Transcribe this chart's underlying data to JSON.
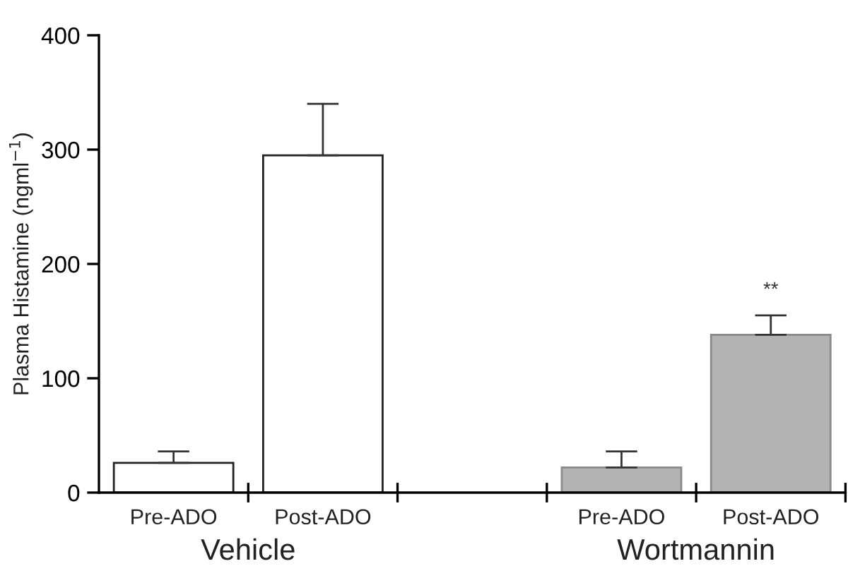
{
  "chart_data": {
    "type": "bar",
    "ylabel": "Plasma Histamine (ngml$^{−1}$)",
    "categories": [
      "Pre-ADO",
      "Post-ADO",
      null,
      "Pre-ADO",
      "Post-ADO"
    ],
    "values": [
      26,
      295,
      null,
      22,
      138
    ],
    "errors": [
      10,
      45,
      null,
      14,
      17
    ],
    "colors": [
      "#ffffff",
      "#ffffff",
      null,
      "#b3b3b3",
      "#b3b3b3"
    ],
    "value_labels": [
      null,
      null,
      null,
      null,
      "**"
    ],
    "annotations": [
      "Vehicle",
      "Wortmannin"
    ],
    "ylim": [
      0,
      400
    ],
    "yticks": [
      0,
      100,
      200,
      300,
      400
    ],
    "grid": false,
    "legend": false
  }
}
